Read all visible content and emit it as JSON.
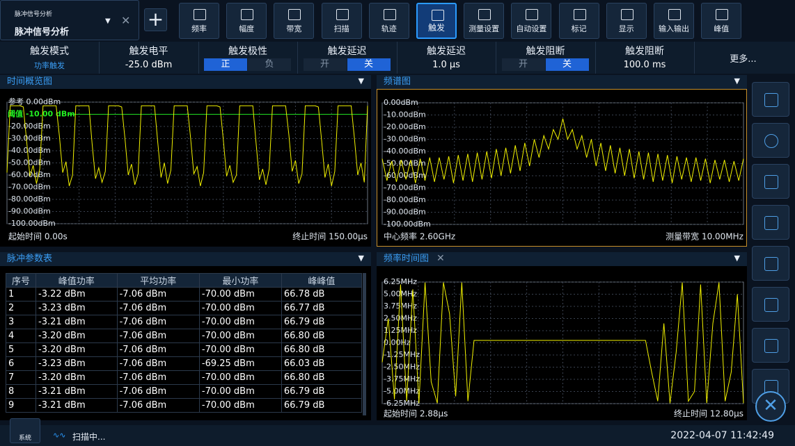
{
  "header": {
    "app_label": "脉冲信号分析",
    "app_title": "脉冲信号分析"
  },
  "toolbar": {
    "buttons": [
      "频率",
      "幅度",
      "带宽",
      "扫描",
      "轨迹",
      "触发",
      "测量设置",
      "自动设置",
      "标记",
      "显示",
      "输入输出",
      "峰值"
    ],
    "active": 5
  },
  "settings": {
    "items": [
      {
        "label": "触发模式",
        "value": "功率触发"
      },
      {
        "label": "触发电平",
        "value": "-25.0 dBm"
      },
      {
        "label": "触发极性",
        "options": [
          "正",
          "负"
        ],
        "selected": 0
      },
      {
        "label": "触发延迟",
        "options": [
          "开",
          "关"
        ],
        "selected": 1
      },
      {
        "label": "触发延迟",
        "value": "1.0 µs"
      },
      {
        "label": "触发阻断",
        "options": [
          "开",
          "关"
        ],
        "selected": 1
      },
      {
        "label": "触发阻断",
        "value": "100.0 ms"
      }
    ],
    "more": "更多..."
  },
  "time_overview": {
    "title": "时间概览图",
    "threshold": "阈值 -10.00 dBm",
    "threshold_level": -10,
    "ylim": [
      -100,
      0
    ],
    "yticks": [
      {
        "value": 0,
        "label": "参考 0.00dBm"
      },
      {
        "value": -10,
        "label": "-10.00dBm"
      },
      {
        "value": -20,
        "label": "-20.00dBm"
      },
      {
        "value": -30,
        "label": "-30.00dBm"
      },
      {
        "value": -40,
        "label": "-40.00dBm"
      },
      {
        "value": -50,
        "label": "-50.00dBm"
      },
      {
        "value": -60,
        "label": "-60.00dBm"
      },
      {
        "value": -70,
        "label": "-70.00dBm"
      },
      {
        "value": -80,
        "label": "-80.00dBm"
      },
      {
        "value": -90,
        "label": "-90.00dBm"
      },
      {
        "value": -100,
        "label": "-100.00dBm"
      }
    ],
    "start": "起始时间 0.00s",
    "end": "终止时间 150.00µs",
    "color": "#f2f200",
    "trace": [
      -58,
      -3,
      -3,
      -3,
      -3,
      -4,
      -32,
      -61,
      -52,
      -67,
      -55,
      -3,
      -3,
      -3,
      -3,
      -3,
      -28,
      -58,
      -49,
      -69,
      -60,
      -3,
      -3,
      -3,
      -3,
      -3,
      -35,
      -63,
      -54,
      -66,
      -57,
      -3,
      -3,
      -3,
      -3,
      -4,
      -30,
      -60,
      -51,
      -68,
      -59,
      -3,
      -3,
      -3,
      -3,
      -3,
      -33,
      -62,
      -50,
      -67,
      -56,
      -3,
      -3,
      -3,
      -3,
      -3,
      -29,
      -59,
      -53,
      -69,
      -58,
      -3,
      -3,
      -3,
      -3,
      -4,
      -31,
      -61,
      -52,
      -66,
      -60,
      -3,
      -3,
      -3,
      -3,
      -3,
      -34,
      -64,
      -55,
      -68,
      -55,
      -3,
      -3,
      -3,
      -3,
      -3,
      -27,
      -57,
      -48,
      -67,
      -59,
      -3,
      -3,
      -3,
      -3,
      -4,
      -32,
      -62,
      -51,
      -69,
      -57,
      -3,
      -3,
      -3,
      -3,
      -3,
      -30,
      -60,
      -50,
      -66,
      -3
    ]
  },
  "spectrum": {
    "title": "频谱图",
    "ylim": [
      -100,
      0
    ],
    "yticks": [
      {
        "value": 0,
        "label": "0.00dBm"
      },
      {
        "value": -10,
        "label": "-10.00dBm"
      },
      {
        "value": -20,
        "label": "-20.00dBm"
      },
      {
        "value": -30,
        "label": "-30.00dBm"
      },
      {
        "value": -40,
        "label": "-40.00dBm"
      },
      {
        "value": -50,
        "label": "-50.00dBm"
      },
      {
        "value": -60,
        "label": "-60.00dBm"
      },
      {
        "value": -70,
        "label": "-70.00dBm"
      },
      {
        "value": -80,
        "label": "-80.00dBm"
      },
      {
        "value": -90,
        "label": "-90.00dBm"
      },
      {
        "value": -100,
        "label": "-100.00dBm"
      }
    ],
    "start": "中心频率 2.60GHz",
    "end": "测量带宽 10.00MHz",
    "color": "#f2f200",
    "trace": [
      -46,
      -64,
      -48,
      -65,
      -47,
      -63,
      -47,
      -66,
      -46,
      -64,
      -45,
      -65,
      -45,
      -63,
      -44,
      -66,
      -43,
      -64,
      -42,
      -65,
      -41,
      -63,
      -40,
      -62,
      -38,
      -60,
      -37,
      -58,
      -35,
      -56,
      -33,
      -52,
      -30,
      -45,
      -27,
      -38,
      -22,
      -30,
      -13,
      -30,
      -22,
      -38,
      -27,
      -45,
      -30,
      -52,
      -33,
      -56,
      -35,
      -58,
      -37,
      -60,
      -38,
      -62,
      -40,
      -63,
      -41,
      -65,
      -42,
      -64,
      -43,
      -66,
      -44,
      -63,
      -45,
      -65,
      -45,
      -64,
      -46,
      -66,
      -47,
      -63,
      -47,
      -65,
      -48,
      -64,
      -46
    ]
  },
  "pulse_table": {
    "title": "脉冲参数表",
    "headers": [
      "序号",
      "峰值功率",
      "平均功率",
      "最小功率",
      "峰峰值"
    ],
    "rows": [
      [
        "1",
        "-3.22 dBm",
        "-7.06 dBm",
        "-70.00 dBm",
        "66.78 dB"
      ],
      [
        "2",
        "-3.23 dBm",
        "-7.06 dBm",
        "-70.00 dBm",
        "66.77 dB"
      ],
      [
        "3",
        "-3.21 dBm",
        "-7.06 dBm",
        "-70.00 dBm",
        "66.79 dB"
      ],
      [
        "4",
        "-3.20 dBm",
        "-7.06 dBm",
        "-70.00 dBm",
        "66.80 dB"
      ],
      [
        "5",
        "-3.20 dBm",
        "-7.06 dBm",
        "-70.00 dBm",
        "66.80 dB"
      ],
      [
        "6",
        "-3.23 dBm",
        "-7.06 dBm",
        "-69.25 dBm",
        "66.03 dB"
      ],
      [
        "7",
        "-3.20 dBm",
        "-7.06 dBm",
        "-70.00 dBm",
        "66.80 dB"
      ],
      [
        "8",
        "-3.21 dBm",
        "-7.06 dBm",
        "-70.00 dBm",
        "66.79 dB"
      ],
      [
        "9",
        "-3.21 dBm",
        "-7.06 dBm",
        "-70.00 dBm",
        "66.79 dB"
      ]
    ]
  },
  "freq_time": {
    "title": "频率时间图",
    "ylim": [
      -6.25,
      6.25
    ],
    "yticks": [
      {
        "value": 6.25,
        "label": "6.25MHz"
      },
      {
        "value": 5,
        "label": "5.00MHz"
      },
      {
        "value": 3.75,
        "label": "3.75MHz"
      },
      {
        "value": 2.5,
        "label": "2.50MHz"
      },
      {
        "value": 1.25,
        "label": "1.25MHz"
      },
      {
        "value": 0,
        "label": "0.00Hz"
      },
      {
        "value": -1.25,
        "label": "-1.25MHz"
      },
      {
        "value": -2.5,
        "label": "-2.50MHz"
      },
      {
        "value": -3.75,
        "label": "-3.75MHz"
      },
      {
        "value": -5,
        "label": "-5.00MHz"
      },
      {
        "value": -6.25,
        "label": "-6.25MHz"
      }
    ],
    "start": "起始时间 2.88µs",
    "end": "终止时间 12.80µs",
    "color": "#f2f200",
    "trace": [
      -2,
      2.5,
      -5.8,
      6,
      -6,
      5.5,
      -6.2,
      6.2,
      -4,
      -6.2,
      6.2,
      3,
      -5.5,
      6.2,
      -6,
      0.25,
      0.25,
      0.25,
      0.25,
      0.25,
      0.25,
      0.25,
      0.25,
      0.25,
      0.25,
      0.25,
      0.25,
      0.25,
      0.25,
      0.25,
      0.25,
      0.25,
      0.25,
      0.25,
      0.25,
      0.25,
      0.25,
      0.25,
      0.25,
      0.25,
      0.25,
      0.25,
      0.25,
      0.25,
      -3,
      -6,
      2,
      -6.2,
      -1,
      6.2,
      -6,
      -5,
      6,
      -6.2,
      2,
      6.2,
      -6,
      -3,
      5,
      -6.2
    ]
  },
  "status": {
    "system": "系统",
    "state": "扫描中...",
    "datetime": "2022-04-07 11:42:49"
  }
}
